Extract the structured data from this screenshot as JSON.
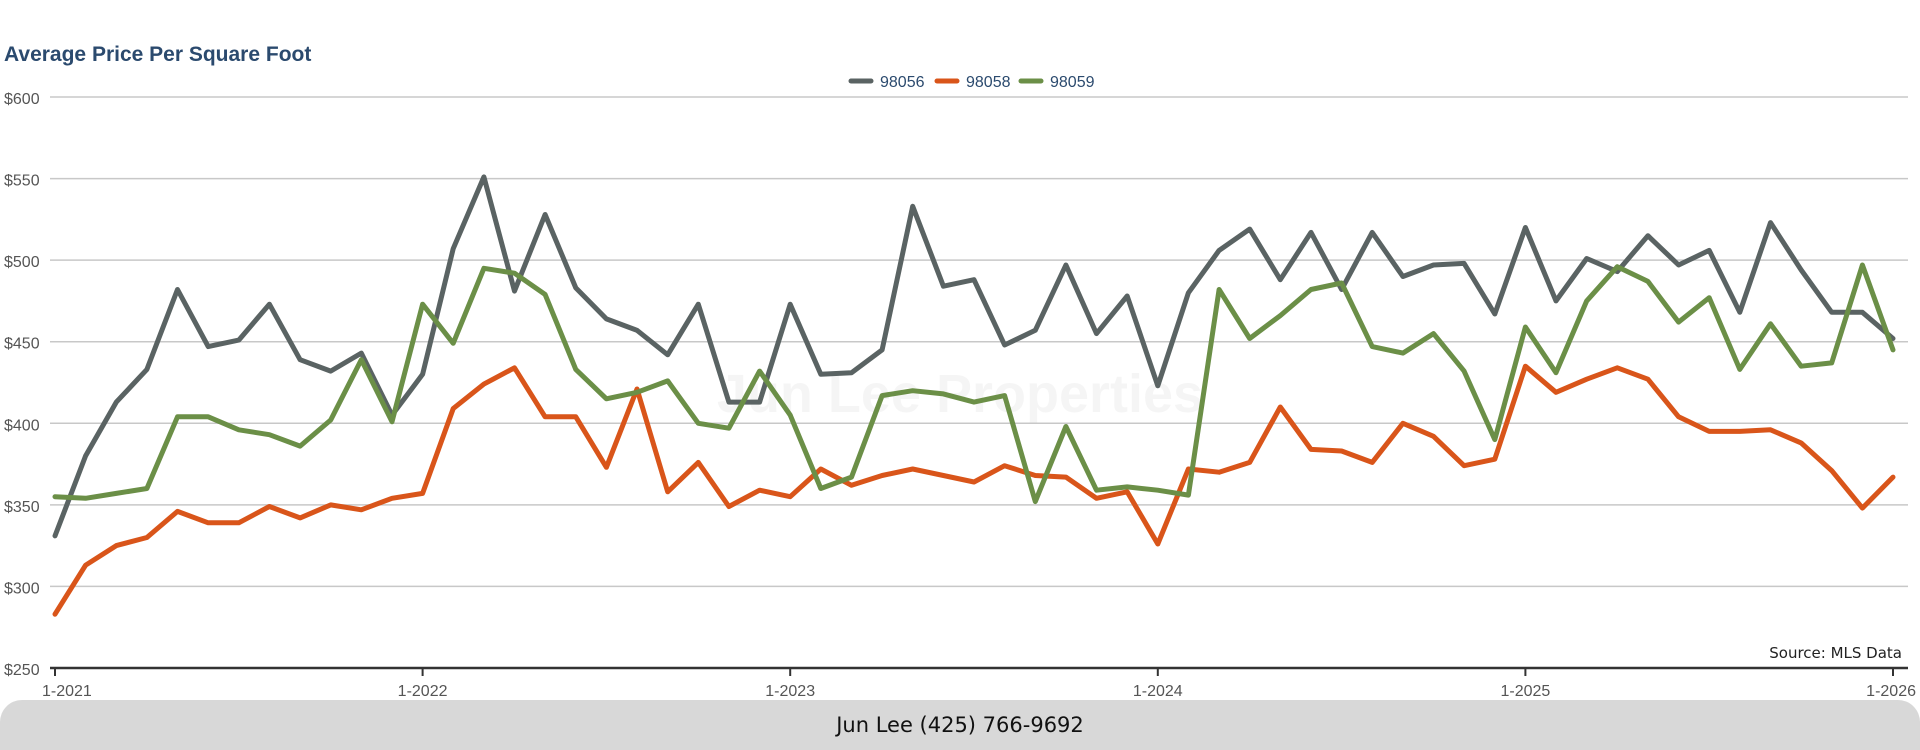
{
  "footer": {
    "contact": "Jun Lee (425) 766-9692"
  },
  "chart_data": {
    "type": "line",
    "title": "Average Price Per Square Foot",
    "title_color": "#2b4a6e",
    "watermark": "Jun Lee Properties",
    "source": "Source: MLS Data",
    "xlabel": "",
    "ylabel": "",
    "ylim": [
      250,
      600
    ],
    "y_ticks": [
      250,
      300,
      350,
      400,
      450,
      500,
      550,
      600
    ],
    "y_tick_labels": [
      "$250",
      "$300",
      "$350",
      "$400",
      "$450",
      "$500",
      "$550",
      "$600"
    ],
    "x_tick_labels": [
      "1-2021",
      "1-2022",
      "1-2023",
      "1-2024",
      "1-2025",
      "1-2026"
    ],
    "x_tick_indices": [
      0,
      12,
      24,
      36,
      48,
      60
    ],
    "grid": true,
    "legend_position": "top-center",
    "series": [
      {
        "name": "98056",
        "color": "#5a6363",
        "values": [
          331,
          380,
          413,
          433,
          482,
          447,
          451,
          473,
          439,
          432,
          443,
          405,
          430,
          507,
          551,
          481,
          528,
          483,
          464,
          457,
          442,
          473,
          413,
          413,
          473,
          430,
          431,
          445,
          533,
          484,
          488,
          448,
          457,
          497,
          455,
          478,
          423,
          480,
          506,
          519,
          488,
          517,
          482,
          517,
          490,
          497,
          498,
          467,
          520,
          475,
          501,
          493,
          515,
          497,
          506,
          468,
          523,
          494,
          468,
          468,
          452
        ]
      },
      {
        "name": "98058",
        "color": "#d9551a",
        "values": [
          283,
          313,
          325,
          330,
          346,
          339,
          339,
          349,
          342,
          350,
          347,
          354,
          357,
          409,
          424,
          434,
          404,
          404,
          373,
          421,
          358,
          376,
          349,
          359,
          355,
          372,
          362,
          368,
          372,
          368,
          364,
          374,
          368,
          367,
          354,
          358,
          326,
          372,
          370,
          376,
          410,
          384,
          383,
          376,
          400,
          392,
          374,
          378,
          435,
          419,
          427,
          434,
          427,
          404,
          395,
          395,
          396,
          388,
          371,
          348,
          367
        ]
      },
      {
        "name": "98059",
        "color": "#6b8f47",
        "values": [
          355,
          354,
          357,
          360,
          404,
          404,
          396,
          393,
          386,
          402,
          439,
          401,
          473,
          449,
          495,
          492,
          479,
          433,
          415,
          419,
          426,
          400,
          397,
          432,
          405,
          360,
          367,
          417,
          420,
          418,
          413,
          417,
          352,
          398,
          359,
          361,
          359,
          356,
          482,
          452,
          466,
          482,
          486,
          447,
          443,
          455,
          432,
          390,
          459,
          431,
          475,
          496,
          487,
          462,
          477,
          433,
          461,
          435,
          437,
          497,
          445
        ]
      }
    ]
  }
}
